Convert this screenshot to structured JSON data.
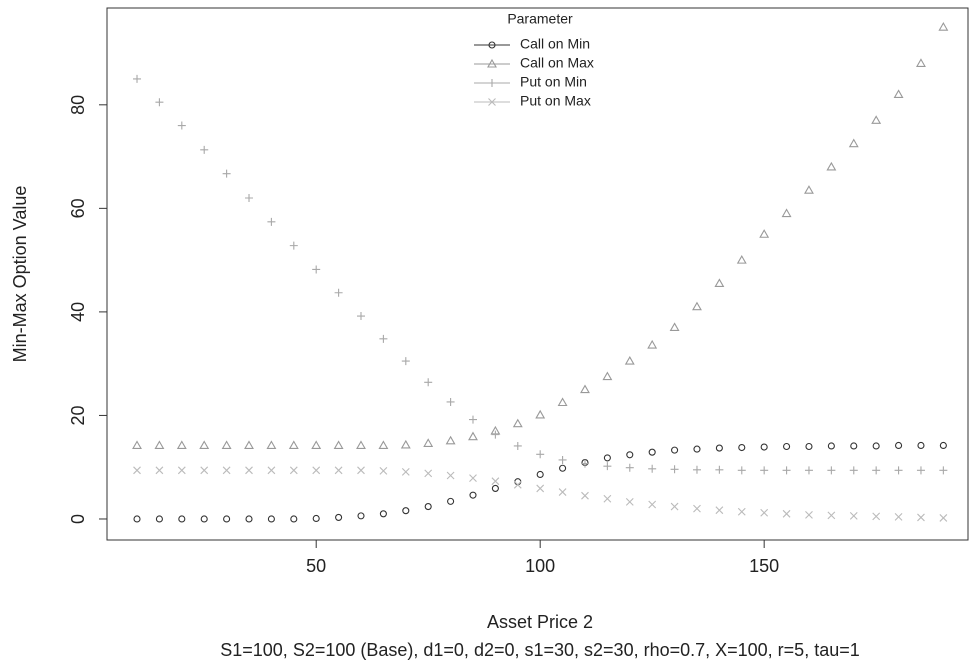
{
  "chart_data": {
    "type": "scatter",
    "y_label": "Min-Max Option Value",
    "x_label": "Asset Price 2",
    "caption": "S1=100, S2=100 (Base), d1=0, d2=0, s1=30, s2=30, rho=0.7, X=100, r=5, tau=1",
    "legend_title": "Parameter",
    "legend": "top",
    "x": [
      10,
      15,
      20,
      25,
      30,
      35,
      40,
      45,
      50,
      55,
      60,
      65,
      70,
      75,
      80,
      85,
      90,
      95,
      100,
      105,
      110,
      115,
      120,
      125,
      130,
      135,
      140,
      145,
      150,
      155,
      160,
      165,
      170,
      175,
      180,
      185,
      190
    ],
    "series": [
      {
        "name": "Call on Min",
        "color": "#333333",
        "marker": "circle",
        "values": [
          0,
          0,
          0,
          0,
          0,
          0,
          0,
          0,
          0.1,
          0.3,
          0.6,
          1.0,
          1.6,
          2.4,
          3.4,
          4.6,
          5.9,
          7.2,
          8.6,
          9.8,
          10.9,
          11.8,
          12.4,
          12.9,
          13.3,
          13.5,
          13.7,
          13.8,
          13.9,
          14.0,
          14.0,
          14.1,
          14.1,
          14.1,
          14.2,
          14.2,
          14.2
        ]
      },
      {
        "name": "Call on Max",
        "color": "#999999",
        "marker": "triangle",
        "values": [
          14.2,
          14.2,
          14.2,
          14.2,
          14.2,
          14.2,
          14.2,
          14.2,
          14.2,
          14.2,
          14.2,
          14.2,
          14.3,
          14.6,
          15.1,
          15.9,
          17.0,
          18.4,
          20.1,
          22.5,
          25,
          27.5,
          30.5,
          33.6,
          37,
          41,
          45.5,
          50,
          55,
          59,
          63.5,
          68,
          72.5,
          77,
          82,
          88,
          95
        ]
      },
      {
        "name": "Put on Min",
        "color": "#a8a8a8",
        "marker": "plus",
        "values": [
          85,
          80.5,
          76,
          71.3,
          66.7,
          62,
          57.4,
          52.8,
          48.2,
          43.7,
          39.2,
          34.8,
          30.5,
          26.4,
          22.6,
          19.2,
          16.3,
          14.1,
          12.5,
          11.4,
          10.7,
          10.2,
          9.9,
          9.7,
          9.6,
          9.5,
          9.5,
          9.4,
          9.4,
          9.4,
          9.4,
          9.4,
          9.4,
          9.4,
          9.4,
          9.4,
          9.4
        ]
      },
      {
        "name": "Put on Max",
        "color": "#bbbbbb",
        "marker": "x",
        "values": [
          9.4,
          9.4,
          9.4,
          9.4,
          9.4,
          9.4,
          9.4,
          9.4,
          9.4,
          9.4,
          9.4,
          9.3,
          9.1,
          8.8,
          8.4,
          7.9,
          7.3,
          6.6,
          5.9,
          5.2,
          4.5,
          3.9,
          3.3,
          2.8,
          2.4,
          2.0,
          1.7,
          1.4,
          1.2,
          1.0,
          0.8,
          0.7,
          0.6,
          0.5,
          0.4,
          0.3,
          0.2
        ]
      }
    ],
    "xlim": [
      3.3,
      195.5
    ],
    "xticks": [
      50,
      100,
      150
    ],
    "ylim": [
      -4.06,
      98.7
    ],
    "yticks": [
      0,
      20,
      40,
      60,
      80
    ]
  }
}
